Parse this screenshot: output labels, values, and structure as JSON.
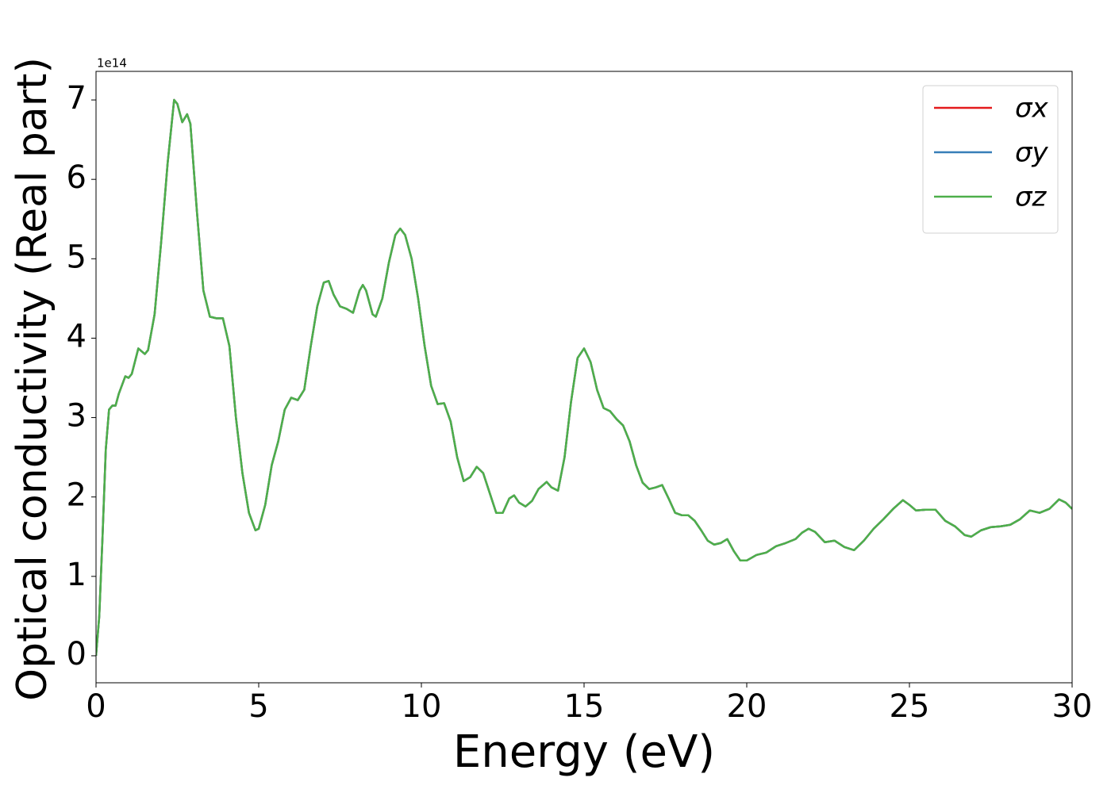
{
  "chart_data": {
    "type": "line",
    "xlabel": "Energy (eV)",
    "ylabel": "Optical conductivity (Real part)",
    "y_offset_label": "1e14",
    "x": [
      0,
      0.1,
      0.2,
      0.3,
      0.4,
      0.5,
      0.6,
      0.7,
      0.9,
      1.0,
      1.1,
      1.3,
      1.5,
      1.6,
      1.8,
      2.0,
      2.2,
      2.4,
      2.5,
      2.65,
      2.8,
      2.9,
      3.1,
      3.3,
      3.5,
      3.7,
      3.9,
      4.1,
      4.3,
      4.5,
      4.7,
      4.9,
      5.0,
      5.2,
      5.4,
      5.6,
      5.8,
      6.0,
      6.2,
      6.4,
      6.6,
      6.8,
      7.0,
      7.15,
      7.3,
      7.5,
      7.7,
      7.9,
      8.1,
      8.2,
      8.3,
      8.5,
      8.6,
      8.8,
      9.0,
      9.2,
      9.35,
      9.5,
      9.7,
      9.9,
      10.1,
      10.3,
      10.5,
      10.7,
      10.9,
      11.1,
      11.3,
      11.5,
      11.7,
      11.9,
      12.1,
      12.3,
      12.5,
      12.7,
      12.85,
      13.0,
      13.2,
      13.4,
      13.6,
      13.85,
      14.0,
      14.2,
      14.4,
      14.6,
      14.8,
      15.0,
      15.2,
      15.4,
      15.6,
      15.8,
      16.0,
      16.2,
      16.4,
      16.6,
      16.8,
      17.0,
      17.2,
      17.4,
      17.6,
      17.8,
      18.0,
      18.2,
      18.4,
      18.6,
      18.8,
      19.0,
      19.2,
      19.4,
      19.6,
      19.8,
      20.0,
      20.3,
      20.6,
      20.9,
      21.2,
      21.5,
      21.7,
      21.9,
      22.1,
      22.4,
      22.7,
      23.0,
      23.3,
      23.6,
      23.9,
      24.2,
      24.5,
      24.8,
      25.0,
      25.2,
      25.5,
      25.8,
      26.1,
      26.4,
      26.7,
      26.9,
      27.2,
      27.5,
      27.8,
      28.1,
      28.4,
      28.7,
      29.0,
      29.3,
      29.6,
      29.8,
      30.0
    ],
    "series": [
      {
        "name": "σx",
        "color": "#e41a1c",
        "values": [
          0,
          0.5,
          1.5,
          2.6,
          3.1,
          3.15,
          3.15,
          3.3,
          3.52,
          3.5,
          3.55,
          3.87,
          3.8,
          3.85,
          4.3,
          5.2,
          6.2,
          7.0,
          6.95,
          6.72,
          6.82,
          6.7,
          5.6,
          4.6,
          4.27,
          4.25,
          4.25,
          3.9,
          3.0,
          2.3,
          1.8,
          1.58,
          1.6,
          1.9,
          2.4,
          2.7,
          3.1,
          3.25,
          3.22,
          3.35,
          3.9,
          4.4,
          4.7,
          4.72,
          4.55,
          4.4,
          4.37,
          4.32,
          4.6,
          4.67,
          4.6,
          4.3,
          4.27,
          4.5,
          4.95,
          5.3,
          5.38,
          5.3,
          5.0,
          4.5,
          3.9,
          3.4,
          3.17,
          3.18,
          2.95,
          2.5,
          2.2,
          2.25,
          2.38,
          2.3,
          2.05,
          1.8,
          1.8,
          1.98,
          2.02,
          1.93,
          1.88,
          1.95,
          2.1,
          2.19,
          2.12,
          2.08,
          2.5,
          3.2,
          3.75,
          3.87,
          3.7,
          3.35,
          3.12,
          3.08,
          2.98,
          2.9,
          2.7,
          2.4,
          2.18,
          2.1,
          2.12,
          2.15,
          1.98,
          1.8,
          1.77,
          1.77,
          1.7,
          1.58,
          1.45,
          1.4,
          1.42,
          1.47,
          1.32,
          1.2,
          1.2,
          1.27,
          1.3,
          1.38,
          1.42,
          1.47,
          1.55,
          1.6,
          1.56,
          1.43,
          1.45,
          1.37,
          1.33,
          1.45,
          1.6,
          1.72,
          1.85,
          1.96,
          1.9,
          1.83,
          1.84,
          1.84,
          1.7,
          1.63,
          1.52,
          1.5,
          1.58,
          1.62,
          1.63,
          1.65,
          1.72,
          1.83,
          1.8,
          1.85,
          1.97,
          1.93,
          1.85
        ]
      },
      {
        "name": "σy",
        "color": "#377eb8",
        "values": [
          0,
          0.5,
          1.5,
          2.6,
          3.1,
          3.15,
          3.15,
          3.3,
          3.52,
          3.5,
          3.55,
          3.87,
          3.8,
          3.85,
          4.3,
          5.2,
          6.2,
          7.0,
          6.95,
          6.72,
          6.82,
          6.7,
          5.6,
          4.6,
          4.27,
          4.25,
          4.25,
          3.9,
          3.0,
          2.3,
          1.8,
          1.58,
          1.6,
          1.9,
          2.4,
          2.7,
          3.1,
          3.25,
          3.22,
          3.35,
          3.9,
          4.4,
          4.7,
          4.72,
          4.55,
          4.4,
          4.37,
          4.32,
          4.6,
          4.67,
          4.6,
          4.3,
          4.27,
          4.5,
          4.95,
          5.3,
          5.38,
          5.3,
          5.0,
          4.5,
          3.9,
          3.4,
          3.17,
          3.18,
          2.95,
          2.5,
          2.2,
          2.25,
          2.38,
          2.3,
          2.05,
          1.8,
          1.8,
          1.98,
          2.02,
          1.93,
          1.88,
          1.95,
          2.1,
          2.19,
          2.12,
          2.08,
          2.5,
          3.2,
          3.75,
          3.87,
          3.7,
          3.35,
          3.12,
          3.08,
          2.98,
          2.9,
          2.7,
          2.4,
          2.18,
          2.1,
          2.12,
          2.15,
          1.98,
          1.8,
          1.77,
          1.77,
          1.7,
          1.58,
          1.45,
          1.4,
          1.42,
          1.47,
          1.32,
          1.2,
          1.2,
          1.27,
          1.3,
          1.38,
          1.42,
          1.47,
          1.55,
          1.6,
          1.56,
          1.43,
          1.45,
          1.37,
          1.33,
          1.45,
          1.6,
          1.72,
          1.85,
          1.96,
          1.9,
          1.83,
          1.84,
          1.84,
          1.7,
          1.63,
          1.52,
          1.5,
          1.58,
          1.62,
          1.63,
          1.65,
          1.72,
          1.83,
          1.8,
          1.85,
          1.97,
          1.93,
          1.85
        ]
      },
      {
        "name": "σz",
        "color": "#4daf4a",
        "values": [
          0,
          0.5,
          1.5,
          2.6,
          3.1,
          3.15,
          3.15,
          3.3,
          3.52,
          3.5,
          3.55,
          3.87,
          3.8,
          3.85,
          4.3,
          5.2,
          6.2,
          7.0,
          6.95,
          6.72,
          6.82,
          6.7,
          5.6,
          4.6,
          4.27,
          4.25,
          4.25,
          3.9,
          3.0,
          2.3,
          1.8,
          1.58,
          1.6,
          1.9,
          2.4,
          2.7,
          3.1,
          3.25,
          3.22,
          3.35,
          3.9,
          4.4,
          4.7,
          4.72,
          4.55,
          4.4,
          4.37,
          4.32,
          4.6,
          4.67,
          4.6,
          4.3,
          4.27,
          4.5,
          4.95,
          5.3,
          5.38,
          5.3,
          5.0,
          4.5,
          3.9,
          3.4,
          3.17,
          3.18,
          2.95,
          2.5,
          2.2,
          2.25,
          2.38,
          2.3,
          2.05,
          1.8,
          1.8,
          1.98,
          2.02,
          1.93,
          1.88,
          1.95,
          2.1,
          2.19,
          2.12,
          2.08,
          2.5,
          3.2,
          3.75,
          3.87,
          3.7,
          3.35,
          3.12,
          3.08,
          2.98,
          2.9,
          2.7,
          2.4,
          2.18,
          2.1,
          2.12,
          2.15,
          1.98,
          1.8,
          1.77,
          1.77,
          1.7,
          1.58,
          1.45,
          1.4,
          1.42,
          1.47,
          1.32,
          1.2,
          1.2,
          1.27,
          1.3,
          1.38,
          1.42,
          1.47,
          1.55,
          1.6,
          1.56,
          1.43,
          1.45,
          1.37,
          1.33,
          1.45,
          1.6,
          1.72,
          1.85,
          1.96,
          1.9,
          1.83,
          1.84,
          1.84,
          1.7,
          1.63,
          1.52,
          1.5,
          1.58,
          1.62,
          1.63,
          1.65,
          1.72,
          1.83,
          1.8,
          1.85,
          1.97,
          1.93,
          1.85
        ]
      }
    ],
    "xlim": [
      0,
      30
    ],
    "xticks": [
      0,
      5,
      10,
      15,
      20,
      25,
      30
    ],
    "ylim": [
      -0.34,
      7.36
    ],
    "yticks": [
      0,
      1,
      2,
      3,
      4,
      5,
      6,
      7
    ],
    "grid": false,
    "legend": "upper right"
  }
}
